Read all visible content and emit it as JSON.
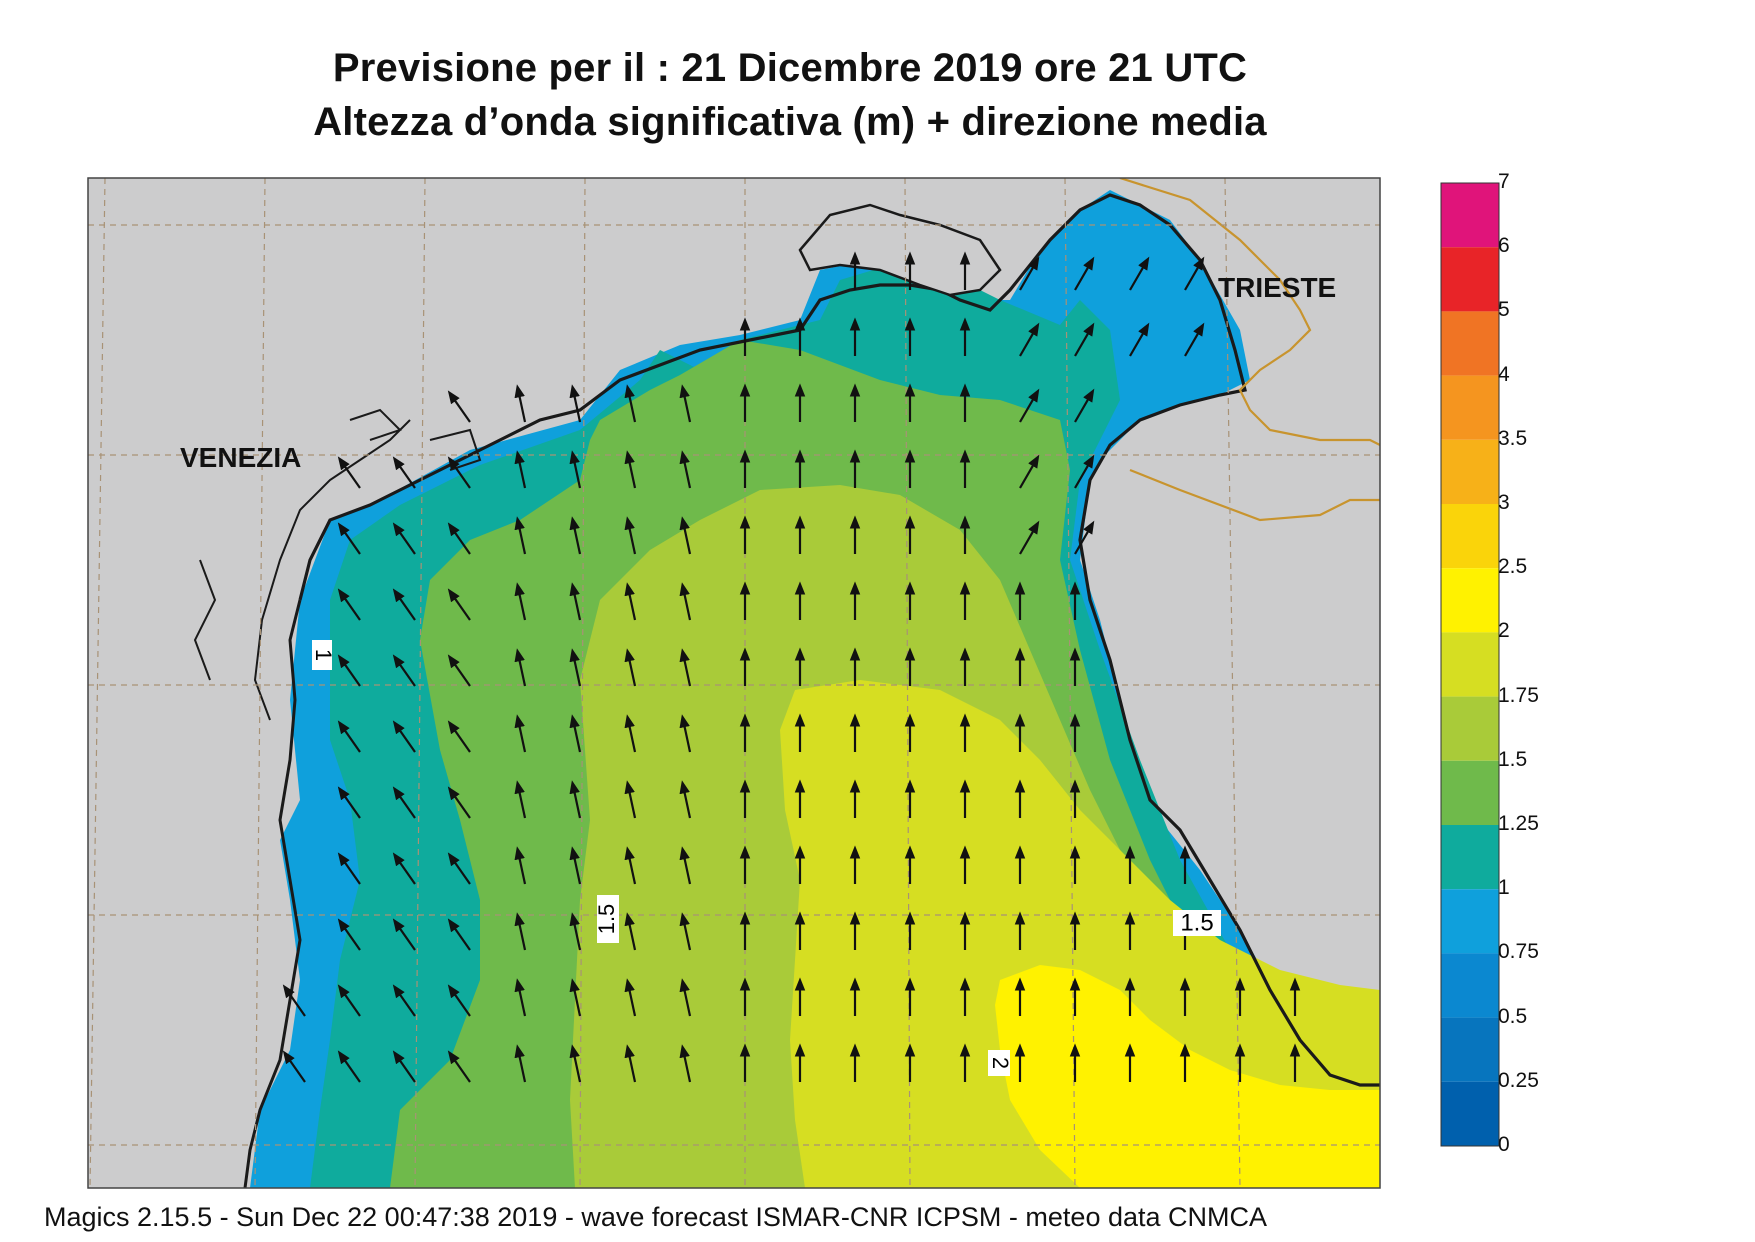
{
  "title": {
    "line1": "Previsione per il  :  21 Dicembre  2019   ore 21 UTC",
    "line2": "Altezza d’onda significativa (m) + direzione media"
  },
  "map": {
    "cities": [
      {
        "name": "VENEZIA"
      },
      {
        "name": "TRIESTE"
      }
    ],
    "contour_labels": [
      "1",
      "1.5",
      "1.5",
      "2"
    ],
    "arrow_direction": "north-northwest"
  },
  "legend": {
    "labels": [
      "7",
      "6",
      "5",
      "4",
      "3.5",
      "3",
      "2.5",
      "2",
      "1.75",
      "1.5",
      "1.25",
      "1",
      "0.75",
      "0.5",
      "0.25",
      "0"
    ],
    "colors": [
      "#e0147a",
      "#e82428",
      "#f07424",
      "#f5951f",
      "#f7b118",
      "#fad40a",
      "#fff200",
      "#d6de22",
      "#a9cb39",
      "#6fba4b",
      "#0fab9d",
      "#0fa0dc",
      "#0b88d0",
      "#0775be",
      "#0060ad"
    ]
  },
  "colors": {
    "land": "#cccccd",
    "coast": "#1a1a1a",
    "border": "#c8942e",
    "grid": "#a89276",
    "level_0_75_1": "#0fa0dc",
    "level_1_1_25": "#0fab9d",
    "level_1_25_1_5": "#6fba4b",
    "level_1_5_1_75": "#a9cb39",
    "level_1_75_2": "#d6de22",
    "level_2_2_5": "#fff200"
  },
  "footer": "Magics 2.15.5 - Sun Dec 22 00:47:38 2019 - wave forecast  ISMAR-CNR  ICPSM - meteo data   CNMCA"
}
